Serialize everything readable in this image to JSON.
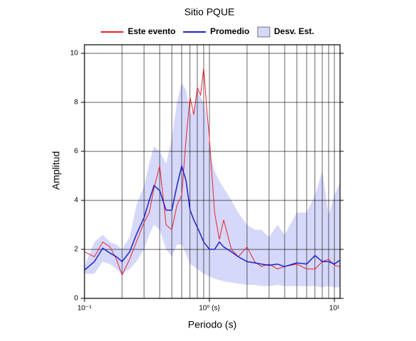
{
  "chart_data": {
    "type": "line",
    "title": "Sitio PQUE",
    "xlabel": "Periodo (s)",
    "ylabel": "Amplitud",
    "xscale": "log",
    "grid": true,
    "legend": "top",
    "xlim": [
      0.1,
      11.1
    ],
    "ylim": [
      0,
      10.35
    ],
    "xticks": [
      {
        "value": 0.1,
        "label": "10⁻¹"
      },
      {
        "value": 1,
        "label": "10⁰ (s)"
      },
      {
        "value": 10,
        "label": "10¹"
      }
    ],
    "xgrid": [
      0.2,
      0.3,
      0.4,
      0.5,
      0.6,
      0.7,
      0.8,
      0.9,
      1,
      2,
      3,
      4,
      5,
      6,
      7,
      8,
      9,
      10
    ],
    "yticks": [
      0,
      2,
      4,
      6,
      8,
      10
    ],
    "x": [
      0.1,
      0.12,
      0.14,
      0.16,
      0.18,
      0.2,
      0.23,
      0.26,
      0.3,
      0.33,
      0.36,
      0.4,
      0.45,
      0.5,
      0.55,
      0.6,
      0.65,
      0.7,
      0.75,
      0.8,
      0.85,
      0.9,
      0.95,
      1.0,
      1.1,
      1.2,
      1.3,
      1.5,
      1.7,
      2,
      2.3,
      2.6,
      3,
      3.5,
      4,
      5,
      6,
      7,
      8,
      9,
      10,
      11
    ],
    "band": {
      "name": "Desv. Est.",
      "color": "#d6d8fa",
      "upper": [
        1.3,
        2.3,
        2.6,
        2.3,
        2.2,
        2.0,
        2.5,
        3.8,
        4.6,
        5.5,
        6.2,
        6.0,
        5.5,
        6.5,
        8.0,
        8.8,
        8.5,
        7.5,
        7.7,
        8.5,
        8.2,
        8.0,
        7.5,
        6.0,
        5.2,
        4.8,
        4.5,
        4.0,
        3.5,
        3.0,
        2.8,
        2.8,
        2.5,
        3.0,
        2.6,
        3.5,
        3.5,
        4.2,
        5.2,
        3.4,
        4.2,
        4.7
      ],
      "lower": [
        1.0,
        1.0,
        1.5,
        1.4,
        1.2,
        1.0,
        1.2,
        1.5,
        2.0,
        2.6,
        3.0,
        2.8,
        2.0,
        1.7,
        2.2,
        2.2,
        1.8,
        1.4,
        1.3,
        1.2,
        1.1,
        1.0,
        0.95,
        0.9,
        0.8,
        0.75,
        0.7,
        0.65,
        0.6,
        0.55,
        0.55,
        0.5,
        0.5,
        0.55,
        0.5,
        0.5,
        0.5,
        0.5,
        0.45,
        0.5,
        0.45,
        0.45
      ]
    },
    "series": [
      {
        "name": "Este evento",
        "color": "#e8202a",
        "values": [
          1.9,
          1.7,
          2.3,
          2.1,
          1.6,
          0.95,
          1.6,
          2.3,
          3.1,
          3.5,
          4.5,
          5.4,
          3.0,
          2.8,
          3.8,
          4.2,
          6.5,
          8.2,
          7.5,
          8.6,
          8.3,
          9.4,
          7.8,
          6.5,
          3.5,
          2.4,
          3.2,
          2.0,
          1.7,
          2.1,
          1.5,
          1.3,
          1.4,
          1.2,
          1.3,
          1.4,
          1.2,
          1.2,
          1.5,
          1.6,
          1.35,
          1.3
        ]
      },
      {
        "name": "Promedio",
        "color": "#1c22c8",
        "values": [
          1.15,
          1.5,
          2.05,
          1.85,
          1.7,
          1.5,
          1.9,
          2.6,
          3.3,
          4.0,
          4.6,
          4.4,
          3.6,
          3.6,
          4.6,
          5.4,
          4.8,
          3.6,
          3.2,
          2.9,
          2.6,
          2.3,
          2.15,
          2.0,
          2.0,
          2.3,
          2.1,
          1.9,
          1.7,
          1.5,
          1.45,
          1.4,
          1.35,
          1.4,
          1.3,
          1.45,
          1.4,
          1.75,
          1.5,
          1.5,
          1.4,
          1.55
        ]
      }
    ]
  }
}
